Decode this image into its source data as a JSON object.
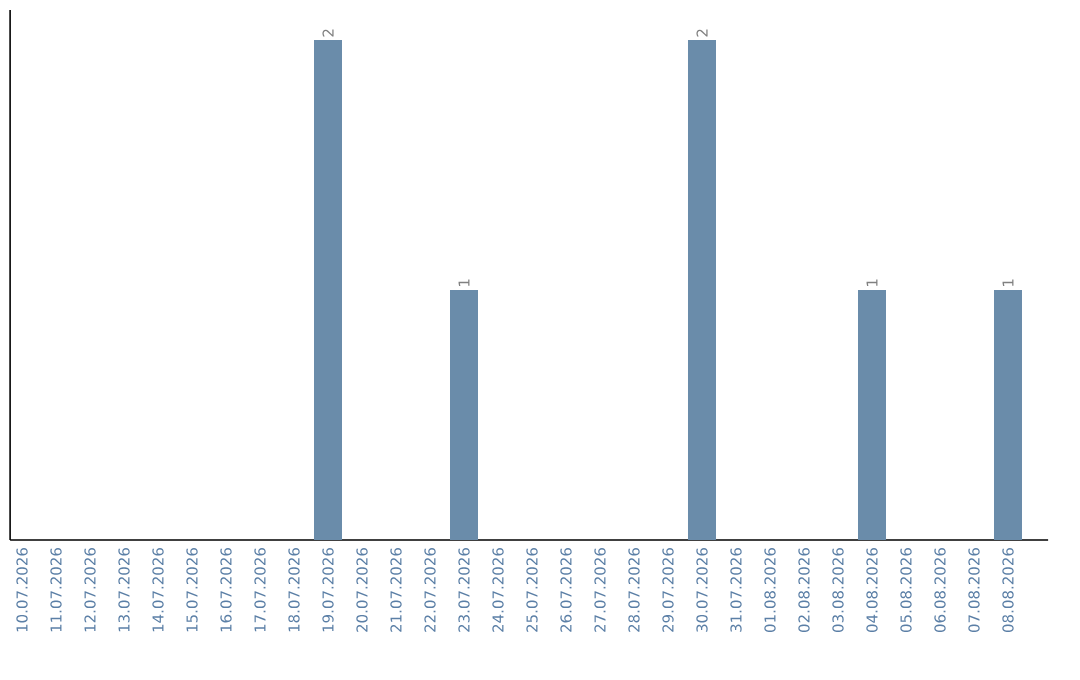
{
  "chart_data": {
    "type": "bar",
    "color": "#6a8caa",
    "categories": [
      "10.07.2026",
      "11.07.2026",
      "12.07.2026",
      "13.07.2026",
      "14.07.2026",
      "15.07.2026",
      "16.07.2026",
      "17.07.2026",
      "18.07.2026",
      "19.07.2026",
      "20.07.2026",
      "21.07.2026",
      "22.07.2026",
      "23.07.2026",
      "24.07.2026",
      "25.07.2026",
      "26.07.2026",
      "27.07.2026",
      "28.07.2026",
      "29.07.2026",
      "30.07.2026",
      "31.07.2026",
      "01.08.2026",
      "02.08.2026",
      "03.08.2026",
      "04.08.2026",
      "05.08.2026",
      "06.08.2026",
      "07.08.2026",
      "08.08.2026"
    ],
    "values": [
      0,
      0,
      0,
      0,
      0,
      0,
      0,
      0,
      0,
      2,
      0,
      0,
      0,
      1,
      0,
      0,
      0,
      0,
      0,
      0,
      2,
      0,
      0,
      0,
      0,
      1,
      0,
      0,
      0,
      1
    ],
    "value_labels": [
      null,
      null,
      null,
      null,
      null,
      null,
      null,
      null,
      null,
      "2",
      null,
      null,
      null,
      "1",
      null,
      null,
      null,
      null,
      null,
      null,
      "2",
      null,
      null,
      null,
      null,
      "1",
      null,
      null,
      null,
      "1"
    ],
    "tick_labels": "x"
  }
}
